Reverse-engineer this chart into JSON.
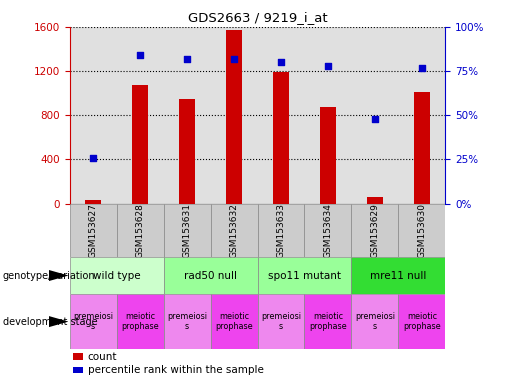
{
  "title": "GDS2663 / 9219_i_at",
  "samples": [
    "GSM153627",
    "GSM153628",
    "GSM153631",
    "GSM153632",
    "GSM153633",
    "GSM153634",
    "GSM153629",
    "GSM153630"
  ],
  "counts": [
    30,
    1070,
    950,
    1570,
    1190,
    870,
    60,
    1010
  ],
  "percentile_ranks": [
    26,
    84,
    82,
    82,
    80,
    78,
    48,
    77
  ],
  "ylim_left": [
    0,
    1600
  ],
  "ylim_right": [
    0,
    100
  ],
  "yticks_left": [
    0,
    400,
    800,
    1200,
    1600
  ],
  "yticks_right": [
    0,
    25,
    50,
    75,
    100
  ],
  "bar_color": "#cc0000",
  "dot_color": "#0000cc",
  "bar_width": 0.35,
  "genotype_groups": [
    {
      "label": "wild type",
      "start": 0,
      "end": 2,
      "color": "#ccffcc"
    },
    {
      "label": "rad50 null",
      "start": 2,
      "end": 4,
      "color": "#99ff99"
    },
    {
      "label": "spo11 mutant",
      "start": 4,
      "end": 6,
      "color": "#99ff99"
    },
    {
      "label": "mre11 null",
      "start": 6,
      "end": 8,
      "color": "#33dd33"
    }
  ],
  "dev_stages": [
    {
      "label": "premeiosi\ns",
      "start": 0,
      "end": 1,
      "color": "#ee88ee"
    },
    {
      "label": "meiotic\nprophase",
      "start": 1,
      "end": 2,
      "color": "#ee44ee"
    },
    {
      "label": "premeiosi\ns",
      "start": 2,
      "end": 3,
      "color": "#ee88ee"
    },
    {
      "label": "meiotic\nprophase",
      "start": 3,
      "end": 4,
      "color": "#ee44ee"
    },
    {
      "label": "premeiosi\ns",
      "start": 4,
      "end": 5,
      "color": "#ee88ee"
    },
    {
      "label": "meiotic\nprophase",
      "start": 5,
      "end": 6,
      "color": "#ee44ee"
    },
    {
      "label": "premeiosi\ns",
      "start": 6,
      "end": 7,
      "color": "#ee88ee"
    },
    {
      "label": "meiotic\nprophase",
      "start": 7,
      "end": 8,
      "color": "#ee44ee"
    }
  ],
  "left_axis_color": "#cc0000",
  "right_axis_color": "#0000cc",
  "background_color": "#ffffff",
  "plot_bg_color": "#e0e0e0",
  "sample_bg_color": "#cccccc",
  "legend_items": [
    {
      "color": "#cc0000",
      "label": "count"
    },
    {
      "color": "#0000cc",
      "label": "percentile rank within the sample"
    }
  ]
}
